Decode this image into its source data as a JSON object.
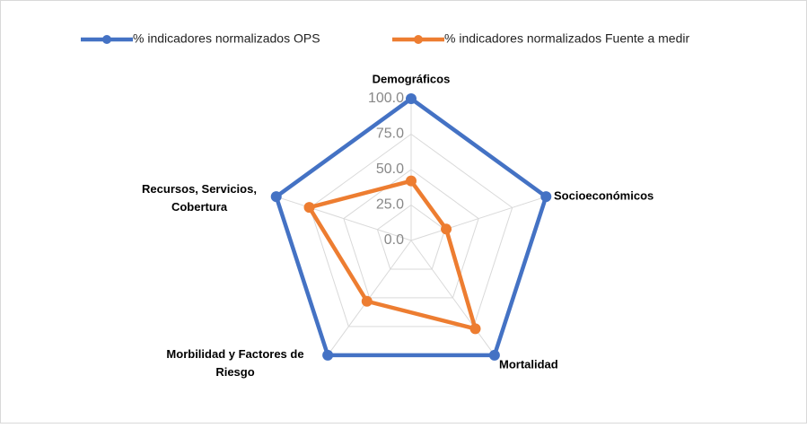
{
  "chart_data": {
    "type": "radar",
    "categories": [
      "Demográficos",
      "Socioeconómicos",
      "Mortalidad",
      "Morbilidad y Factores de Riesgo",
      "Recursos, Servicios, Cobertura"
    ],
    "series": [
      {
        "name": "% indicadores  normalizados OPS",
        "color": "#4472c4",
        "values": [
          100,
          100,
          100,
          100,
          100
        ]
      },
      {
        "name": "% indicadores  normalizados Fuente a medir",
        "color": "#ed7d31",
        "values": [
          42,
          26,
          77,
          53,
          75.5
        ]
      }
    ],
    "ylim": [
      0,
      100
    ],
    "yticks": [
      {
        "value": 0,
        "label": "0.0"
      },
      {
        "value": 25,
        "label": "25.0"
      },
      {
        "value": 50,
        "label": "50.0"
      },
      {
        "value": 75,
        "label": "75.0"
      },
      {
        "value": 100,
        "label": "100.0"
      }
    ],
    "grid": true,
    "legend": "top"
  }
}
